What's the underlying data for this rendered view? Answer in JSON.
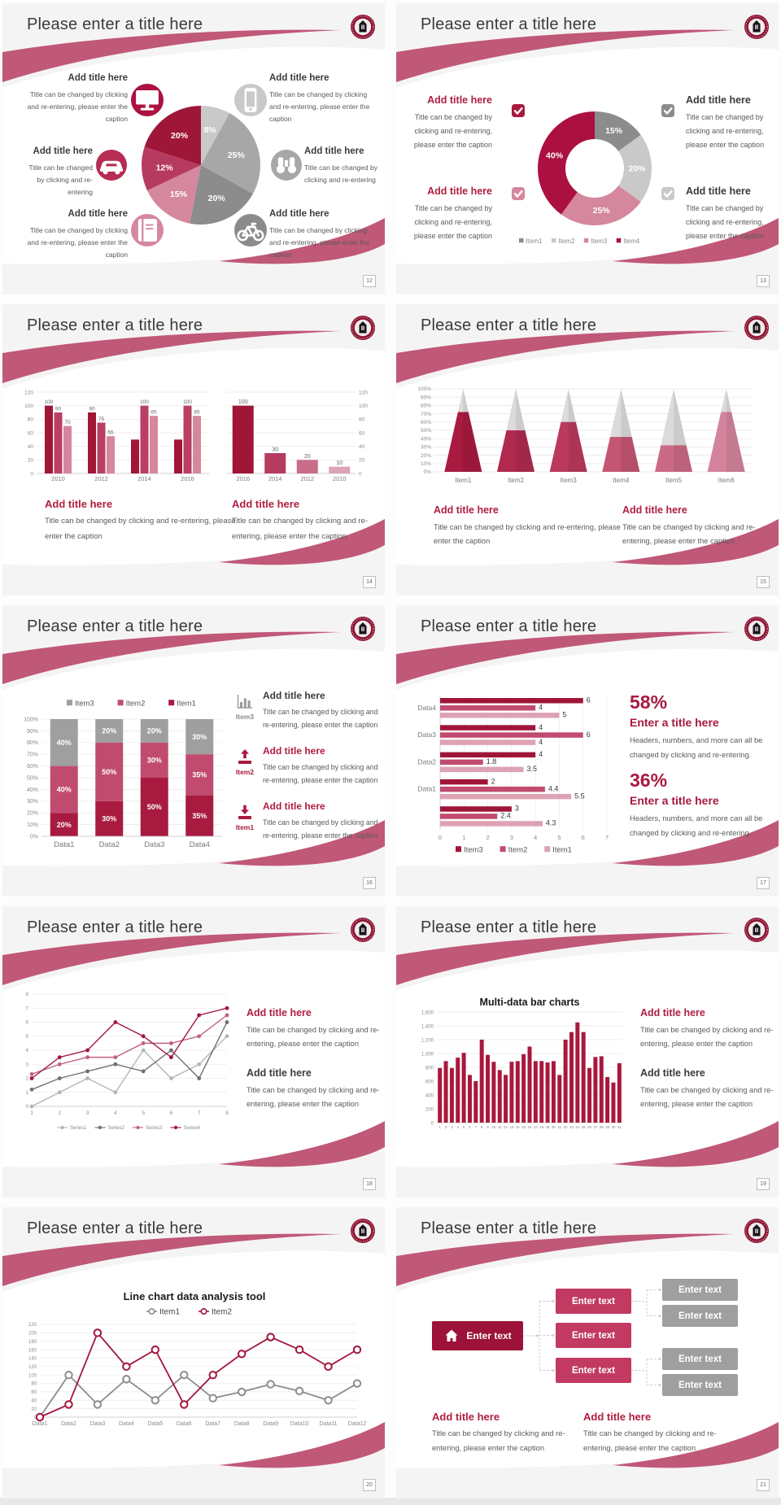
{
  "theme": {
    "swoosh": "#c05878",
    "slide_bg": "#f5f4f4",
    "white": "#ffffff",
    "title_text": "#3a3a3a",
    "heading_dark": "#3c3c3c",
    "heading_red": "#b01e41",
    "caption_text": "#5a5a5a",
    "crimson": "#a81a40",
    "gray_dark": "#8b8b8b",
    "gray_mid": "#a7a7a7",
    "gray_light": "#c9c9c9",
    "pink": "#d5879e"
  },
  "common": {
    "slide_title": "Please enter a title here"
  },
  "slides": [
    {
      "number": "12",
      "layout": "pie_callouts",
      "chart": 0,
      "callouts": [
        {
          "icon": "monitor-icon",
          "circle_color": "#ab1240",
          "heading": "Add title here",
          "caption": "Title can be changed by clicking and re-entering, please enter the caption"
        },
        {
          "icon": "smartphone-icon",
          "circle_color": "#c9c9c9",
          "heading": "Add title here",
          "caption": "Title can be changed by clicking and re-entering, please enter the caption"
        },
        {
          "icon": "car-icon",
          "circle_color": "#b72c52",
          "heading": "Add title here",
          "caption": "Title can be changed by clicking and re-entering"
        },
        {
          "icon": "binoculars-icon",
          "circle_color": "#a7a7a7",
          "heading": "Add title here",
          "caption": "Title can be changed by clicking and re-entering"
        },
        {
          "icon": "book-icon",
          "circle_color": "#d5879e",
          "heading": "Add title here",
          "caption": "Title can be changed by clicking and re-entering, please enter the caption"
        },
        {
          "icon": "bicycle-icon",
          "circle_color": "#8b8b8b",
          "heading": "Add title here",
          "caption": "Title can be changed by clicking and re-entering, please enter the caption"
        }
      ]
    },
    {
      "number": "13",
      "layout": "donut_checks",
      "chart": 1,
      "checks": [
        {
          "check_color": "#a81a40",
          "heading": "Add title here",
          "heading_color": "red",
          "caption": "Title can be changed by clicking and re-entering, please enter the caption"
        },
        {
          "check_color": "#8c8c8c",
          "heading": "Add title here",
          "heading_color": "dark",
          "caption": "Title can be changed by clicking and re-entering, please enter the caption"
        },
        {
          "check_color": "#d5879e",
          "heading": "Add title here",
          "heading_color": "red",
          "caption": "Title can be changed by clicking and re-entering, please enter the caption"
        },
        {
          "check_color": "#c9c9c9",
          "heading": "Add title here",
          "heading_color": "dark",
          "caption": "Title can be changed by clicking and re-entering, please enter the caption"
        }
      ]
    },
    {
      "number": "14",
      "layout": "two_bar_charts",
      "charts": [
        2,
        3
      ],
      "panels": [
        {
          "heading": "Add title here",
          "heading_color": "red",
          "caption": "Title can be changed by clicking and re-entering, please enter the caption"
        },
        {
          "heading": "Add title here",
          "heading_color": "red",
          "caption": "Title can be changed by clicking and re-entering, please enter the caption"
        }
      ]
    },
    {
      "number": "15",
      "layout": "cones",
      "chart": 4,
      "panels": [
        {
          "heading": "Add title here",
          "heading_color": "red",
          "caption": "Title can be changed by clicking and re-entering, please enter the caption"
        },
        {
          "heading": "Add title here",
          "heading_color": "red",
          "caption": "Title can be changed by clicking and re-entering, please enter the caption"
        }
      ]
    },
    {
      "number": "16",
      "layout": "stacked",
      "chart": 5,
      "rows": [
        {
          "icon": "bar-chart-icon",
          "icon_color": "#9a9a9a",
          "item": "Item3",
          "item_color": "#8a8a8a",
          "heading": "Add title here",
          "heading_color": "dark",
          "caption": "Title can be changed by clicking and re-entering, please enter the caption"
        },
        {
          "icon": "upload-icon",
          "icon_color": "#a81a40",
          "item": "Item2",
          "item_color": "#a81a40",
          "heading": "Add title here",
          "heading_color": "red",
          "caption": "Title can be changed by clicking and re-entering, please enter the caption"
        },
        {
          "icon": "download-icon",
          "icon_color": "#a81a40",
          "item": "Item1",
          "item_color": "#a81a40",
          "heading": "Add title here",
          "heading_color": "red",
          "caption": "Title can be changed by clicking and re-entering, please enter the caption"
        }
      ]
    },
    {
      "number": "17",
      "layout": "hbars",
      "chart": 6,
      "stats": [
        {
          "pct": "58%",
          "heading": "Enter a title here",
          "caption": "Headers, numbers, and more can all be changed by clicking and re-entering."
        },
        {
          "pct": "36%",
          "heading": "Enter a title here",
          "caption": "Headers, numbers, and more can all be changed by clicking and re-entering."
        }
      ]
    },
    {
      "number": "18",
      "layout": "line_panel",
      "chart": 7,
      "panels": [
        {
          "heading": "Add title here",
          "heading_color": "red",
          "caption": "Title can be changed by clicking and re-entering, please enter the caption"
        },
        {
          "heading": "Add title here",
          "heading_color": "dark",
          "caption": "Title can be changed by clicking and re-entering, please enter the caption"
        }
      ]
    },
    {
      "number": "19",
      "layout": "bars_panel",
      "chart": 8,
      "panels": [
        {
          "heading": "Add title here",
          "heading_color": "red",
          "caption": "Title can be changed by clicking and re-entering, please enter the caption"
        },
        {
          "heading": "Add title here",
          "heading_color": "dark",
          "caption": "Title can be changed by clicking and re-entering, please enter the caption"
        }
      ]
    },
    {
      "number": "20",
      "layout": "line_wide",
      "chart": 9
    },
    {
      "number": "21",
      "layout": "tree",
      "root_label": "Enter text",
      "mid_labels": [
        "Enter text",
        "Enter text",
        "Enter text"
      ],
      "leaf_labels": [
        "Enter text",
        "Enter text",
        "Enter text",
        "Enter text"
      ],
      "panels": [
        {
          "heading": "Add title here",
          "heading_color": "red",
          "caption": "Title can be changed by clicking and re-entering, please enter the caption"
        },
        {
          "heading": "Add title here",
          "heading_color": "red",
          "caption": "Title can be changed by clicking and re-entering, please enter the caption"
        }
      ]
    }
  ],
  "chart_data": [
    {
      "id": "pie-12",
      "type": "pie",
      "slide": "12",
      "start_at_top_clockwise": true,
      "slices": [
        {
          "label": "8%",
          "value": 8,
          "color": "#c9c9c9"
        },
        {
          "label": "25%",
          "value": 25,
          "color": "#a7a7a7"
        },
        {
          "label": "20%",
          "value": 20,
          "color": "#8c8c8c"
        },
        {
          "label": "15%",
          "value": 15,
          "color": "#d5879e"
        },
        {
          "label": "12%",
          "value": 12,
          "color": "#b73a60"
        },
        {
          "label": "20%",
          "value": 20,
          "color": "#9e1638"
        }
      ]
    },
    {
      "id": "donut-13",
      "type": "pie",
      "subtype": "donut",
      "slide": "13",
      "slices": [
        {
          "label": "15%",
          "value": 15,
          "color": "#8c8c8c"
        },
        {
          "label": "20%",
          "value": 20,
          "color": "#c9c9c9"
        },
        {
          "label": "25%",
          "value": 25,
          "color": "#d5879e"
        },
        {
          "label": "40%",
          "value": 40,
          "color": "#ab1040"
        }
      ],
      "legend": [
        {
          "label": "Item1",
          "color": "#8c8c8c"
        },
        {
          "label": "Item2",
          "color": "#c9c9c9"
        },
        {
          "label": "Item3",
          "color": "#d5879e"
        },
        {
          "label": "Item4",
          "color": "#ab1040"
        }
      ]
    },
    {
      "id": "grouped-bars-14",
      "type": "bar",
      "slide": "14",
      "categories": [
        "2010",
        "2012",
        "2014",
        "2016"
      ],
      "series": [
        {
          "name": "series1",
          "color": "#a01636",
          "values": [
            100,
            90,
            50,
            50
          ],
          "labels": [
            "100",
            "90",
            null,
            null
          ]
        },
        {
          "name": "series2",
          "color": "#bb3f63",
          "values": [
            90,
            75,
            100,
            100
          ],
          "labels": [
            "90",
            "75",
            "100",
            "100"
          ]
        },
        {
          "name": "series3",
          "color": "#d5879e",
          "values": [
            70,
            55,
            85,
            85
          ],
          "labels": [
            "70",
            "55",
            "85",
            "85"
          ]
        }
      ],
      "ylim": [
        0,
        120
      ],
      "ytick_step": 20,
      "yaxis_side": "left",
      "grid": true
    },
    {
      "id": "desc-bars-14",
      "type": "bar",
      "slide": "14",
      "categories": [
        "2016",
        "2014",
        "2012",
        "2010"
      ],
      "series": [
        {
          "name": "series1",
          "colors": [
            "#a01636",
            "#b73a5f",
            "#ca6d88",
            "#dda2b3"
          ],
          "values": [
            100,
            30,
            20,
            10
          ],
          "labels": [
            "100",
            "30",
            "20",
            "10"
          ]
        }
      ],
      "ylim": [
        0,
        120
      ],
      "ytick_step": 20,
      "yaxis_side": "right",
      "grid": true
    },
    {
      "id": "cone-15",
      "type": "cone",
      "slide": "15",
      "categories": [
        "Item1",
        "Item2",
        "Item3",
        "Item4",
        "Item5",
        "Item6"
      ],
      "values_pct": [
        72,
        50,
        60,
        42,
        32,
        72
      ],
      "colors": [
        "#a81a40",
        "#b02a50",
        "#ba3a5e",
        "#c45573",
        "#cb6a85",
        "#d3849c"
      ],
      "rest_color": "#dcdada",
      "ylim_pct": [
        0,
        100
      ],
      "ytick_step_pct": 10
    },
    {
      "id": "stacked-16",
      "type": "stacked-bar",
      "slide": "16",
      "categories": [
        "Data1",
        "Data2",
        "Data3",
        "Data4"
      ],
      "series": [
        {
          "name": "Item1",
          "color": "#a81a40",
          "values": [
            20,
            30,
            50,
            35
          ]
        },
        {
          "name": "Item2",
          "color": "#c14b6e",
          "values": [
            40,
            50,
            30,
            35
          ]
        },
        {
          "name": "Item3",
          "color": "#9f9f9f",
          "values": [
            40,
            20,
            20,
            30
          ]
        }
      ],
      "legend_order": [
        "Item3",
        "Item2",
        "Item1"
      ],
      "ylim_pct": [
        0,
        100
      ],
      "ytick_step_pct": 10
    },
    {
      "id": "hbars-17",
      "type": "bar-horizontal",
      "slide": "17",
      "groups": [
        "Data4",
        "Data3",
        "Data2",
        "Data1",
        ""
      ],
      "series": [
        {
          "name": "Item3",
          "color": "#9e1538",
          "values": [
            6,
            4,
            4,
            2,
            3
          ]
        },
        {
          "name": "Item2",
          "color": "#c14b6e",
          "values": [
            4,
            6,
            1.8,
            4.4,
            2.4
          ]
        },
        {
          "name": "Item1",
          "color": "#dda2b3",
          "values": [
            5,
            4,
            3.5,
            5.5,
            4.3
          ]
        }
      ],
      "xlim": [
        0,
        7
      ],
      "xtick_step": 1,
      "legend": [
        {
          "label": "Item3",
          "color": "#9e1538"
        },
        {
          "label": "Item2",
          "color": "#c14b6e"
        },
        {
          "label": "Item1",
          "color": "#dda2b3"
        }
      ]
    },
    {
      "id": "line-18",
      "type": "line",
      "slide": "18",
      "x": [
        1,
        2,
        3,
        4,
        5,
        6,
        7,
        8
      ],
      "series": [
        {
          "name": "Series1",
          "color": "#b5b5b5",
          "values": [
            0,
            1,
            2,
            1,
            4,
            2,
            3,
            5
          ]
        },
        {
          "name": "Series2",
          "color": "#6f6f6f",
          "values": [
            1.2,
            2,
            2.5,
            3,
            2.5,
            4,
            2,
            6
          ]
        },
        {
          "name": "Series3",
          "color": "#c26180",
          "values": [
            2.3,
            3,
            3.5,
            3.5,
            4.5,
            4.5,
            5,
            6.5
          ]
        },
        {
          "name": "Series4",
          "color": "#a1163c",
          "values": [
            2,
            3.5,
            4,
            6,
            5,
            3.5,
            6.5,
            7
          ]
        }
      ],
      "ylim": [
        0,
        8
      ],
      "ytick_step": 1,
      "legend_position": "bottom"
    },
    {
      "id": "bars-19",
      "type": "bar",
      "slide": "19",
      "title": "Multi-data bar charts",
      "categories": [
        "1",
        "2",
        "3",
        "4",
        "5",
        "6",
        "7",
        "8",
        "9",
        "10",
        "11",
        "12",
        "13",
        "14",
        "15",
        "16",
        "17",
        "18",
        "19",
        "20",
        "21",
        "22",
        "23",
        "24",
        "25",
        "26",
        "27",
        "28",
        "29",
        "30",
        "31"
      ],
      "series": [
        {
          "name": "values",
          "color": "#a8183d",
          "values": [
            790,
            890,
            790,
            940,
            1010,
            690,
            600,
            1200,
            980,
            880,
            760,
            690,
            880,
            890,
            990,
            1100,
            890,
            890,
            870,
            890,
            690,
            1200,
            1310,
            1450,
            1310,
            790,
            950,
            960,
            660,
            580,
            860
          ]
        }
      ],
      "ylim": [
        0,
        1600
      ],
      "ytick_step": 200,
      "yaxis_side": "left",
      "grid": true
    },
    {
      "id": "line-20",
      "type": "line",
      "slide": "20",
      "title": "Line chart data analysis tool",
      "categories": [
        "Data1",
        "Data2",
        "Data3",
        "Data4",
        "Data5",
        "Data6",
        "Data7",
        "Data8",
        "Data9",
        "Data10",
        "Data11",
        "Data12"
      ],
      "series": [
        {
          "name": "Item1",
          "color": "#8c8c8c",
          "values": [
            0,
            100,
            30,
            90,
            40,
            100,
            45,
            60,
            78,
            62,
            40,
            80
          ]
        },
        {
          "name": "Item2",
          "color": "#a1163c",
          "values": [
            0,
            30,
            200,
            120,
            160,
            30,
            100,
            150,
            190,
            160,
            120,
            160
          ]
        }
      ],
      "ylim": [
        0,
        220
      ],
      "ytick_step": 20,
      "legend_position": "top",
      "marker": "open-circle"
    }
  ]
}
